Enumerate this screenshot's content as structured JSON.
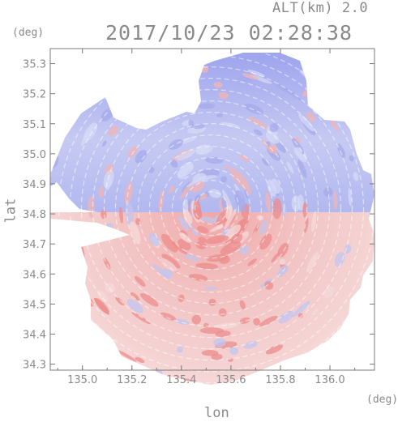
{
  "header": {
    "altitude_label": "ALT(km) 2.0",
    "datetime": "2017/10/23 02:28:38"
  },
  "axes": {
    "x_unit": "(deg)",
    "y_unit": "(deg)",
    "x_label": "lon",
    "y_label": "lat"
  },
  "chart_data": {
    "type": "heatmap",
    "xlabel": "lon",
    "ylabel": "lat",
    "xlim": [
      134.87,
      136.18
    ],
    "ylim": [
      34.28,
      35.35
    ],
    "x_ticks": [
      135.0,
      135.2,
      135.4,
      135.6,
      135.8,
      136.0
    ],
    "x_tick_labels": [
      "135.0",
      "135.2",
      "135.4",
      "135.6",
      "135.8",
      "136.0"
    ],
    "y_ticks": [
      34.3,
      34.4,
      34.5,
      34.6,
      34.7,
      34.8,
      34.9,
      35.0,
      35.1,
      35.2,
      35.3
    ],
    "y_tick_labels": [
      "34.3",
      "34.4",
      "34.5",
      "34.6",
      "34.7",
      "34.8",
      "34.9",
      "35.0",
      "35.1",
      "35.2",
      "35.3"
    ],
    "radar_center": [
      135.52,
      34.82
    ],
    "colors": {
      "positive": "#f08080",
      "negative": "#8080f0",
      "neutral": "#e8e8f4"
    }
  }
}
